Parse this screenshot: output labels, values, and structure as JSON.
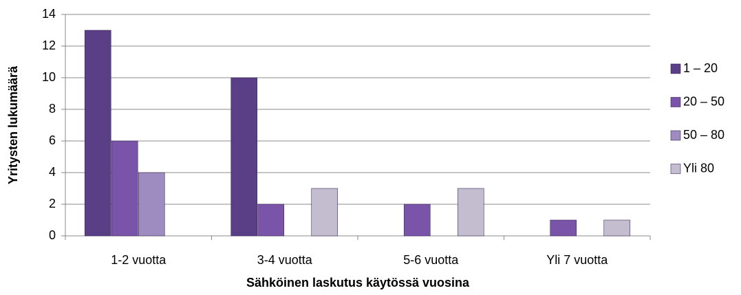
{
  "chart_data": {
    "type": "bar",
    "xlabel": "Sähköinen laskutus käytössä vuosina",
    "ylabel": "Yritysten lukumäärä",
    "categories": [
      "1-2 vuotta",
      "3-4 vuotta",
      "5-6 vuotta",
      "Yli 7 vuotta"
    ],
    "series": [
      {
        "name": "1 – 20",
        "color": "#5b3f86",
        "values": [
          13,
          10,
          0,
          0
        ]
      },
      {
        "name": "20 – 50",
        "color": "#7a54a8",
        "values": [
          6,
          2,
          2,
          1
        ]
      },
      {
        "name": "50 – 80",
        "color": "#9e8cc0",
        "values": [
          4,
          0,
          0,
          0
        ]
      },
      {
        "name": "Yli 80",
        "color": "#c4bdd0",
        "values": [
          0,
          3,
          3,
          1
        ]
      }
    ],
    "ylim": [
      0,
      14
    ],
    "yticks": [
      0,
      2,
      4,
      6,
      8,
      10,
      12,
      14
    ],
    "grid": true,
    "legend": "right"
  }
}
